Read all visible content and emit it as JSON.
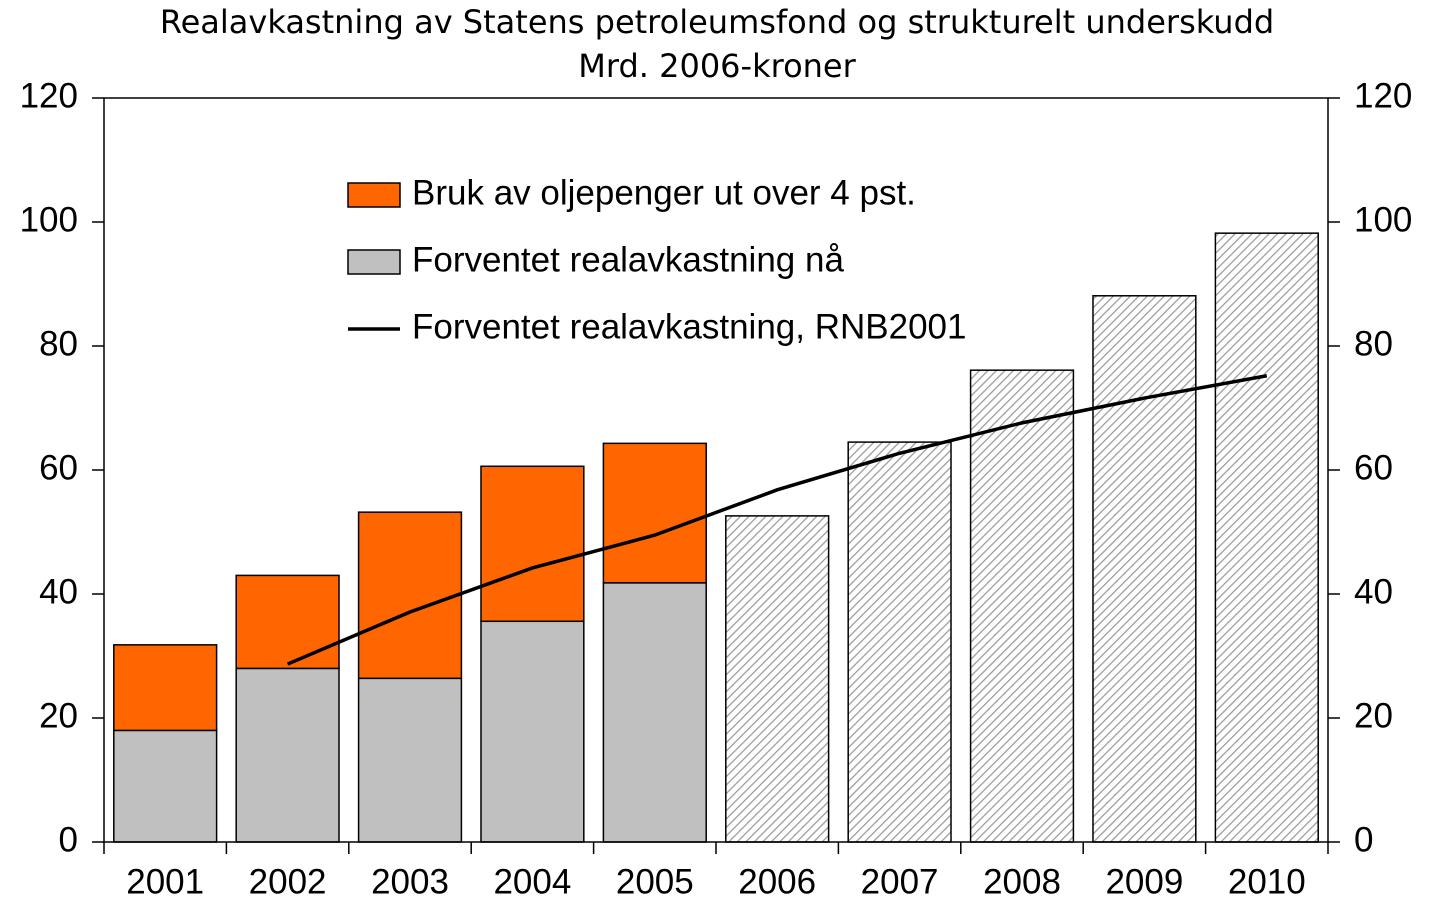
{
  "chart_data": {
    "type": "bar",
    "title": "Realavkastning av Statens petroleumsfond og strukturelt underskudd",
    "subtitle": "Mrd. 2006-kroner",
    "categories": [
      "2001",
      "2002",
      "2003",
      "2004",
      "2005",
      "2006",
      "2007",
      "2008",
      "2009",
      "2010"
    ],
    "series": [
      {
        "name": "Bruk av oljepenger ut over 4 pst.",
        "color": "#ff6600",
        "kind": "bar",
        "values": [
          13.8,
          15,
          26.8,
          25,
          22.5,
          null,
          null,
          null,
          null,
          null
        ]
      },
      {
        "name": "Forventet realavkastning nå",
        "color": "#c0c0c0",
        "kind": "bar",
        "patterns": [
          "solid",
          "solid",
          "solid",
          "solid",
          "solid",
          "hatch",
          "hatch",
          "hatch",
          "hatch",
          "hatch"
        ],
        "values": [
          18,
          28,
          26.4,
          35.6,
          41.8,
          52.6,
          64.5,
          76.1,
          88.1,
          98.2
        ]
      },
      {
        "name": "Forventet realavkastning, RNB2001",
        "color": "#000000",
        "kind": "line",
        "values": [
          null,
          28.7,
          37.1,
          44.2,
          49.5,
          56.8,
          62.7,
          67.6,
          71.6,
          75.2
        ]
      }
    ],
    "stack_order": [
      1,
      0
    ],
    "ylim": [
      0,
      120
    ],
    "yticks": [
      0,
      20,
      40,
      60,
      80,
      100,
      120
    ],
    "y2lim": [
      0,
      120
    ],
    "y2ticks": [
      0,
      20,
      40,
      60,
      80,
      100,
      120
    ],
    "legend": "top-left"
  }
}
